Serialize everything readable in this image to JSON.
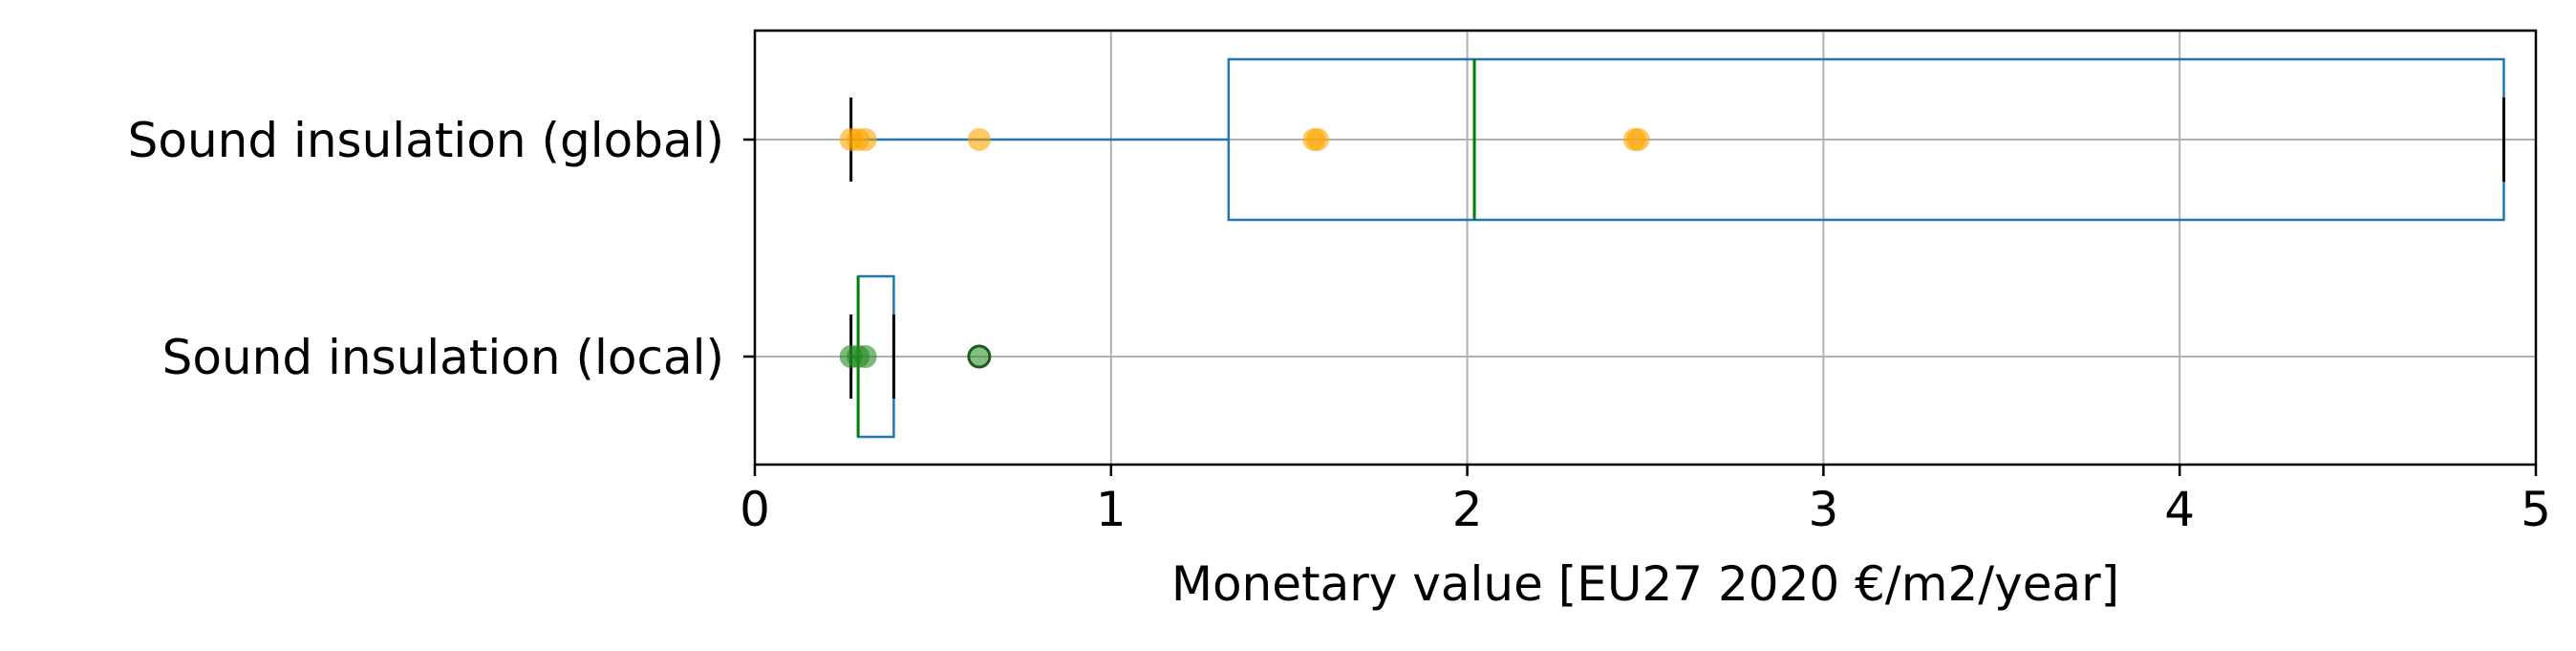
{
  "chart_data": {
    "type": "boxplot",
    "orientation": "horizontal",
    "xlabel": "Monetary value [EU27 2020 €/m2/year]",
    "xlim": [
      0,
      5
    ],
    "xticks": [
      0,
      1,
      2,
      3,
      4,
      5
    ],
    "xtick_labels": [
      "0",
      "1",
      "2",
      "3",
      "4",
      "5"
    ],
    "grid": true,
    "categories": [
      "Sound insulation (global)",
      "Sound insulation (local)"
    ],
    "boxes": [
      {
        "category": "Sound insulation (global)",
        "whisker_low": 0.27,
        "q1": 1.33,
        "median": 2.02,
        "q3": 4.91,
        "whisker_high": 4.91,
        "points": [
          0.27,
          0.29,
          0.31,
          0.63,
          1.57,
          1.58,
          2.47,
          2.48
        ],
        "point_color": "#ffa500",
        "outliers": []
      },
      {
        "category": "Sound insulation (local)",
        "whisker_low": 0.27,
        "q1": 0.29,
        "median": 0.29,
        "q3": 0.39,
        "whisker_high": 0.39,
        "points": [
          0.27,
          0.29,
          0.31
        ],
        "point_color": "#228b22",
        "outliers": [
          0.63
        ]
      }
    ],
    "colors": {
      "box": "#1f77b4",
      "median": "#008000",
      "caps": "#000000",
      "grid": "#b0b0b0",
      "global_points": "#ffa500",
      "local_points": "#228b22"
    }
  }
}
